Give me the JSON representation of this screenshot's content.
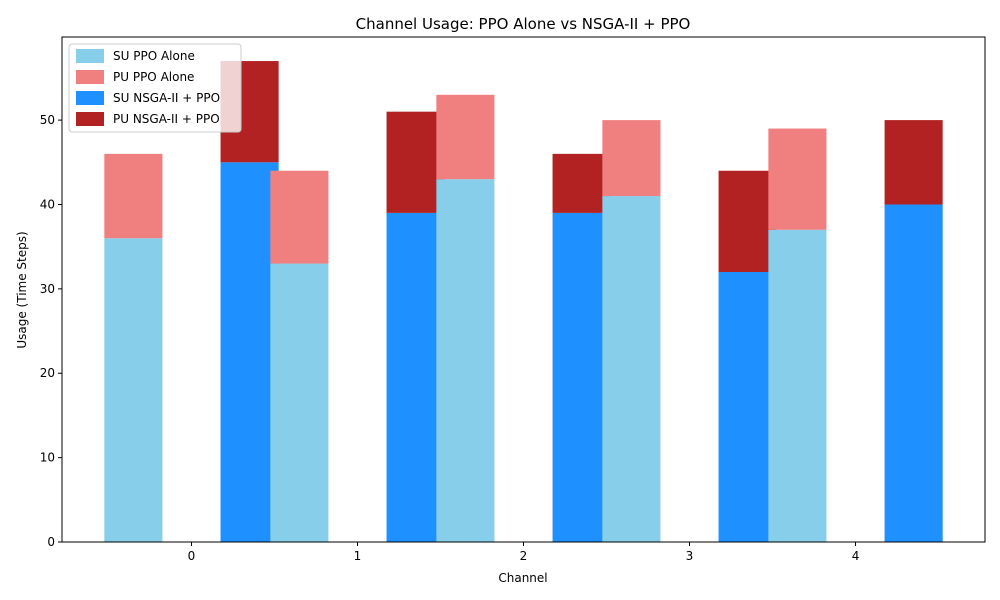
{
  "chart_data": {
    "type": "bar",
    "title": "Channel Usage: PPO Alone vs NSGA-II + PPO",
    "xlabel": "Channel",
    "ylabel": "Usage (Time Steps)",
    "categories": [
      "0",
      "1",
      "2",
      "3",
      "4"
    ],
    "ylim": [
      0,
      59.85
    ],
    "yticks": [
      0,
      10,
      20,
      30,
      40,
      50
    ],
    "legend_position": "top-left",
    "series": [
      {
        "name": "SU PPO Alone",
        "color": "#87CEEB",
        "values": [
          36,
          33,
          43,
          41,
          37
        ],
        "stack": "ppo",
        "layer": "bottom"
      },
      {
        "name": "PU PPO Alone",
        "color": "#F08080",
        "values": [
          10,
          11,
          10,
          9,
          12
        ],
        "stack": "ppo",
        "layer": "top"
      },
      {
        "name": "SU NSGA-II + PPO",
        "color": "#1E90FF",
        "values": [
          45,
          39,
          39,
          32,
          40
        ],
        "stack": "nsga",
        "layer": "bottom"
      },
      {
        "name": "PU NSGA-II + PPO",
        "color": "#B22222",
        "values": [
          12,
          12,
          7,
          12,
          10
        ],
        "stack": "nsga",
        "layer": "top"
      }
    ]
  }
}
